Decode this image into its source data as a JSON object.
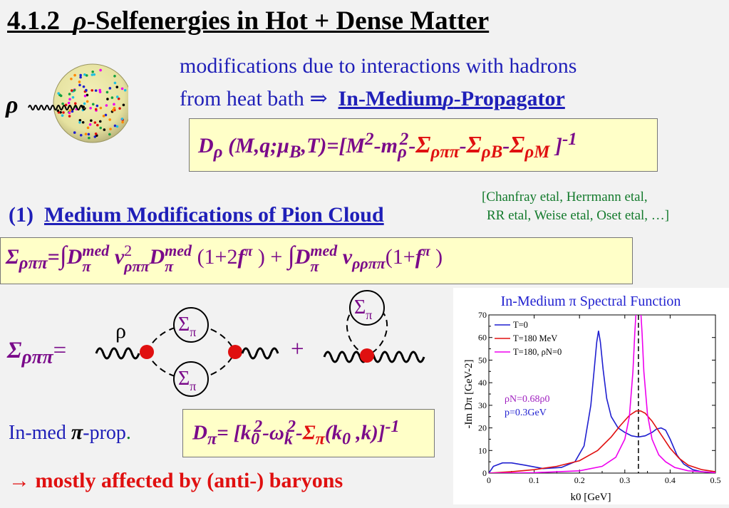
{
  "title": {
    "prefix": "4.1.2",
    "rho": "ρ",
    "rest": "-Selfenergies in Hot + Dense Matter"
  },
  "intro": {
    "line1": "modifications due to interactions with hadrons",
    "line2_pre": "from heat bath",
    "arrow": "⇒",
    "line2_u1": "In-Medium",
    "line2_rho": "ρ",
    "line2_u2": "-Propagator"
  },
  "propagator": {
    "D": "D",
    "sub_rho": "ρ",
    "args": "(M,q;",
    "mu": "μ",
    "sub_B": "B",
    "args2": ",T)=[M",
    "sup2": "2",
    "minus_m": "-m",
    "sub_rho2": "ρ",
    "sup2b": "2",
    "dash": "-",
    "sigma": "Σ",
    "s1": "ρππ",
    "s2": "ρB",
    "s3": "ρM",
    "close": " ]",
    "sup_m1": "-1"
  },
  "refs": {
    "line1": "[Chanfray etal, Herrmann etal,",
    "line2": "RR etal, Weise etal, Oset etal, …]"
  },
  "section1": {
    "num": "(1)",
    "label": "Medium Modifications of Pion Cloud"
  },
  "sigma_formula": {
    "lhs_sigma": "Σ",
    "lhs_sub": "ρππ",
    "eq": "=",
    "int": "∫",
    "D": "D",
    "med": "med",
    "pi": "π",
    "v": "v",
    "two": "2",
    "vsub": "ρππ",
    "factor1": "(1+2",
    "f": "f",
    "close1": " ) +",
    "v2sub": "ρρππ",
    "factor2": "(1+",
    "close2": " )"
  },
  "diagram": {
    "lhs_sigma": "Σ",
    "lhs_sub": "ρππ",
    "eq": "=",
    "rho_label": "ρ",
    "loop_sigma": "Σ",
    "loop_sub": "π",
    "plus": "+"
  },
  "pion_prop": {
    "label_pre": "In-med",
    "pi": "π",
    "label_post": "-prop",
    "dot": ".",
    "D": "D",
    "sub_pi": "π",
    "body1": "= [k",
    "sub0": "0",
    "sup2": "2",
    "dash": "-",
    "omega": "ω",
    "subk": "k",
    "sup2b": "2",
    "dash2": "-",
    "sigma": "Σ",
    "sub_pi2": "π",
    "args": "(k",
    "sub0b": "0",
    "args2": " ,k)]",
    "supm1": "-1"
  },
  "conclusion": "→ mostly affected by (anti-) baryons",
  "colors": {
    "blue": "#1f1fb8",
    "purple": "#7a0a8a",
    "red": "#e01010",
    "green": "#137a2c",
    "box": "#ffffc8"
  },
  "chart_data": {
    "type": "line",
    "title": "In-Medium π Spectral Function",
    "xlabel": "k0 [GeV]",
    "ylabel": "-Im Dπ [GeV-2]",
    "xlim": [
      0,
      0.5
    ],
    "ylim": [
      0,
      70
    ],
    "xticks": [
      "0",
      "0.1",
      "0.2",
      "0.3",
      "0.4",
      "0.5"
    ],
    "yticks": [
      "0",
      "10",
      "20",
      "30",
      "40",
      "50",
      "60",
      "70"
    ],
    "legend": [
      {
        "name": "T=0",
        "color": "#1f1fd0"
      },
      {
        "name": "T=180 MeV",
        "color": "#e01010"
      },
      {
        "name": "T=180, ρN=0",
        "color": "#ee00ee"
      }
    ],
    "annotation1": "ρN=0.68ρ0",
    "annotation2": "p=0.3GeV",
    "vline_x": 0.33,
    "series": [
      {
        "name": "T=0",
        "color": "#1f1fd0",
        "x": [
          0,
          0.01,
          0.03,
          0.05,
          0.08,
          0.12,
          0.16,
          0.19,
          0.21,
          0.225,
          0.232,
          0.238,
          0.242,
          0.246,
          0.252,
          0.26,
          0.27,
          0.285,
          0.3,
          0.315,
          0.33,
          0.345,
          0.36,
          0.37,
          0.38,
          0.39,
          0.4,
          0.415,
          0.43,
          0.45,
          0.47,
          0.5
        ],
        "y": [
          0,
          3,
          4.5,
          4.5,
          3.5,
          2,
          2.5,
          5,
          12,
          30,
          45,
          58,
          63,
          58,
          46,
          33,
          25,
          20,
          18,
          16.5,
          16,
          16.5,
          18,
          19.5,
          20,
          19,
          15,
          8,
          4,
          1.5,
          0.6,
          0.2
        ]
      },
      {
        "name": "T=180 MeV",
        "color": "#e01010",
        "x": [
          0,
          0.05,
          0.1,
          0.15,
          0.2,
          0.24,
          0.27,
          0.29,
          0.31,
          0.325,
          0.335,
          0.345,
          0.36,
          0.38,
          0.4,
          0.42,
          0.44,
          0.47,
          0.5
        ],
        "y": [
          0,
          0.6,
          1.5,
          3,
          5.5,
          10,
          16,
          21,
          25.5,
          27.5,
          27.5,
          26.5,
          23,
          17,
          11,
          6.5,
          3.5,
          1.5,
          0.6
        ]
      },
      {
        "name": "T=180, ρN=0",
        "color": "#ee00ee",
        "x": [
          0,
          0.1,
          0.2,
          0.25,
          0.28,
          0.3,
          0.31,
          0.318,
          0.322,
          0.325,
          0.328,
          0.33,
          0.335,
          0.338,
          0.342,
          0.35,
          0.36,
          0.375,
          0.39,
          0.41,
          0.44,
          0.5
        ],
        "y": [
          0,
          0.2,
          1,
          3,
          7,
          15,
          25,
          45,
          62,
          72,
          72,
          72,
          72,
          62,
          45,
          26,
          15,
          8,
          5,
          2.5,
          1,
          0.2
        ]
      }
    ]
  }
}
